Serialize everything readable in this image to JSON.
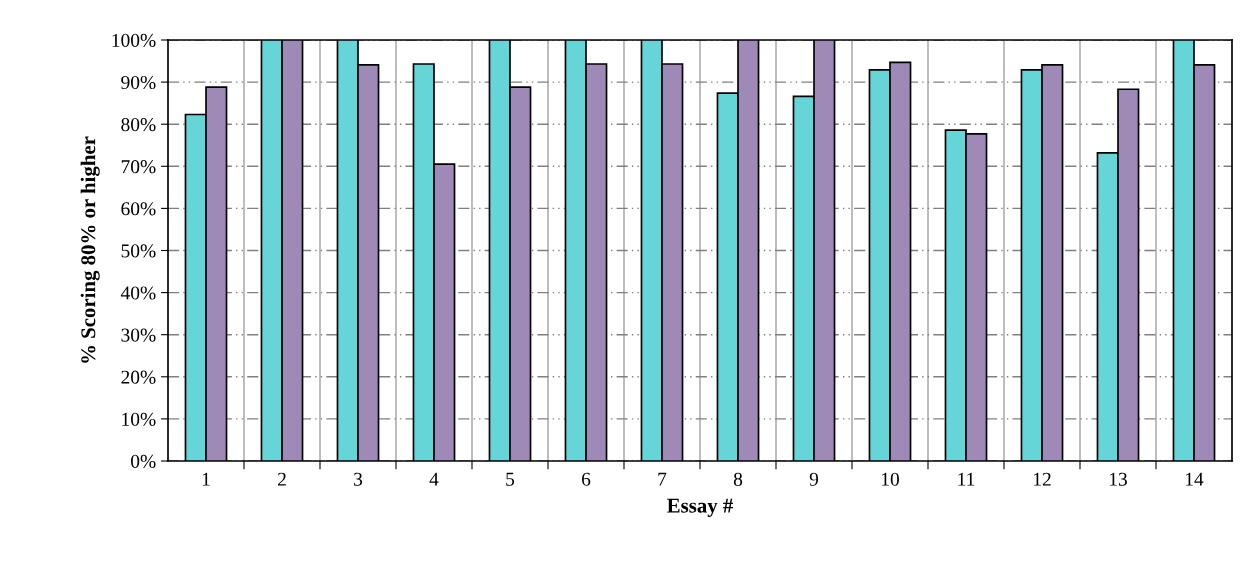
{
  "chart_data": {
    "type": "bar",
    "xlabel": "Essay #",
    "ylabel": "% Scoring 80% or higher",
    "categories": [
      "1",
      "2",
      "3",
      "4",
      "5",
      "6",
      "7",
      "8",
      "9",
      "10",
      "11",
      "12",
      "13",
      "14"
    ],
    "series": [
      {
        "color": "#66d5d8",
        "values": [
          82.3,
          100,
          100,
          94.3,
          100,
          100,
          100,
          87.4,
          86.6,
          92.9,
          78.6,
          92.9,
          73.2,
          100
        ]
      },
      {
        "color": "#9f89b7",
        "values": [
          88.8,
          100,
          94.1,
          70.5,
          88.8,
          94.3,
          94.3,
          100,
          100,
          94.7,
          77.7,
          94.1,
          88.3,
          94.1
        ]
      }
    ],
    "ylim": [
      0,
      100
    ],
    "yticks": [
      {
        "value": 0,
        "label": "0%"
      },
      {
        "value": 10,
        "label": "10%"
      },
      {
        "value": 20,
        "label": "20%"
      },
      {
        "value": 30,
        "label": "30%"
      },
      {
        "value": 40,
        "label": "40%"
      },
      {
        "value": 50,
        "label": "50%"
      },
      {
        "value": 60,
        "label": "60%"
      },
      {
        "value": 70,
        "label": "70%"
      },
      {
        "value": 80,
        "label": "80%"
      },
      {
        "value": 90,
        "label": "90%"
      },
      {
        "value": 100,
        "label": "100%"
      }
    ],
    "grid": true
  }
}
